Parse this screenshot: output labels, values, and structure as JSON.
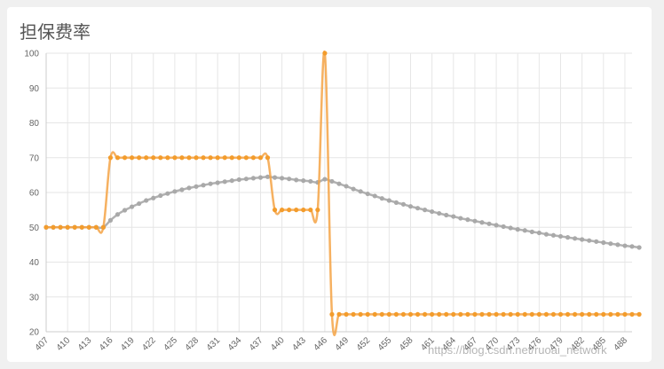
{
  "title": "担保费率",
  "watermark": "https://blog.csdn.net/ruoai_network",
  "colors": {
    "gray_series": "#a9a9a9",
    "orange_series": "#f5a345",
    "orange_point": "#f39c2c",
    "grid": "#e6e6e6"
  },
  "chart_data": {
    "type": "line",
    "title": "担保费率",
    "xlabel": "",
    "ylabel": "",
    "ylim": [
      20,
      100
    ],
    "yticks": [
      20,
      30,
      40,
      50,
      60,
      70,
      80,
      90,
      100
    ],
    "grid": true,
    "legend": "none",
    "x_start": 407,
    "x_end": 489,
    "x_tick_labels": [
      "407",
      "410",
      "413",
      "416",
      "419",
      "422",
      "425",
      "428",
      "431",
      "434",
      "437",
      "440",
      "443",
      "446",
      "449",
      "452",
      "455",
      "458",
      "461",
      "464",
      "467",
      "470",
      "473",
      "476",
      "479",
      "482",
      "485",
      "488"
    ],
    "series": [
      {
        "color": "#a9a9a9",
        "values": [
          50,
          50,
          50,
          50,
          50,
          50,
          50,
          50,
          50,
          52,
          53.7,
          54.9,
          55.9,
          56.8,
          57.7,
          58.4,
          59.1,
          59.7,
          60.3,
          60.8,
          61.3,
          61.7,
          62.1,
          62.5,
          62.8,
          63.1,
          63.4,
          63.7,
          63.9,
          64.1,
          64.3,
          64.5,
          64.3,
          64.1,
          63.9,
          63.6,
          63.4,
          63.2,
          62.9,
          63.8,
          63.2,
          62.5,
          61.8,
          61.0,
          60.3,
          59.6,
          59.0,
          58.3,
          57.7,
          57.1,
          56.6,
          56.0,
          55.5,
          55.0,
          54.5,
          54.0,
          53.5,
          53.1,
          52.6,
          52.2,
          51.8,
          51.4,
          51.0,
          50.6,
          50.2,
          49.8,
          49.4,
          49.1,
          48.7,
          48.4,
          48.0,
          47.7,
          47.4,
          47.1,
          46.8,
          46.5,
          46.2,
          45.9,
          45.6,
          45.3,
          45.0,
          44.7,
          44.5,
          44.2
        ]
      },
      {
        "color": "#f5a345",
        "values": [
          50,
          50,
          50,
          50,
          50,
          50,
          50,
          50,
          50,
          70,
          70,
          70,
          70,
          70,
          70,
          70,
          70,
          70,
          70,
          70,
          70,
          70,
          70,
          70,
          70,
          70,
          70,
          70,
          70,
          70,
          70,
          70,
          55,
          55,
          55,
          55,
          55,
          55,
          55,
          100,
          25,
          25,
          25,
          25,
          25,
          25,
          25,
          25,
          25,
          25,
          25,
          25,
          25,
          25,
          25,
          25,
          25,
          25,
          25,
          25,
          25,
          25,
          25,
          25,
          25,
          25,
          25,
          25,
          25,
          25,
          25,
          25,
          25,
          25,
          25,
          25,
          25,
          25,
          25,
          25,
          25,
          25,
          25,
          25
        ]
      }
    ]
  }
}
